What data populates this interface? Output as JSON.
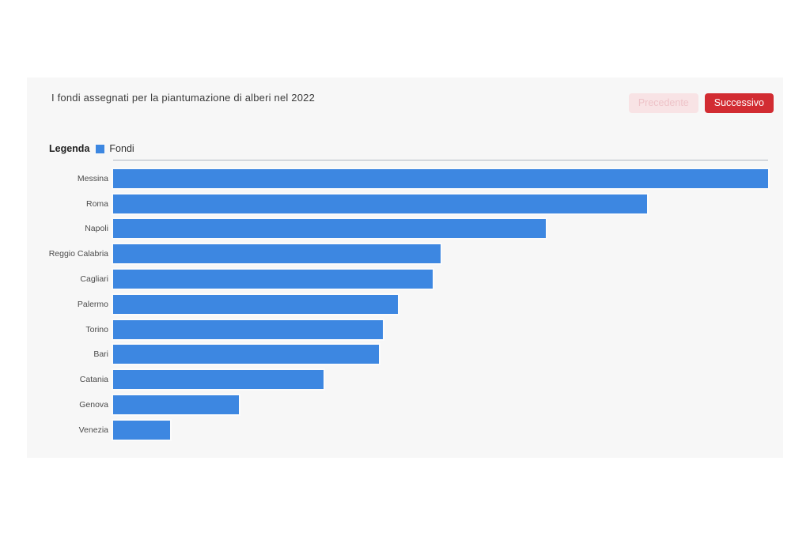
{
  "page": {
    "background": "#ffffff",
    "card_background": "#f7f7f7"
  },
  "header": {
    "title": "I fondi assegnati per la piantumazione di alberi nel 2022",
    "buttons": {
      "previous": {
        "label": "Precedente",
        "disabled": true,
        "bg": "#f8e3e5",
        "text_color": "#eec3c8"
      },
      "next": {
        "label": "Successivo",
        "disabled": false,
        "bg": "#d22c32",
        "text_color": "#ffffff"
      }
    }
  },
  "legend": {
    "title": "Legenda",
    "items": [
      {
        "label": "Fondi",
        "color": "#3d87e1"
      }
    ]
  },
  "chart_data": {
    "type": "bar",
    "orientation": "horizontal",
    "title": "I fondi assegnati per la piantumazione di alberi nel 2022",
    "legend_entries": [
      "Fondi"
    ],
    "legend_position": "top-left",
    "grid": false,
    "value_axis_labels_visible": false,
    "bar_color": "#3d87e1",
    "categories": [
      "Messina",
      "Roma",
      "Napoli",
      "Reggio Calabria",
      "Cagliari",
      "Palermo",
      "Torino",
      "Bari",
      "Catania",
      "Genova",
      "Venezia"
    ],
    "series": [
      {
        "name": "Fondi",
        "values_relative_pct": [
          100,
          81.5,
          66.1,
          50.0,
          48.8,
          43.5,
          41.2,
          40.6,
          32.1,
          19.2,
          8.7
        ]
      }
    ]
  }
}
